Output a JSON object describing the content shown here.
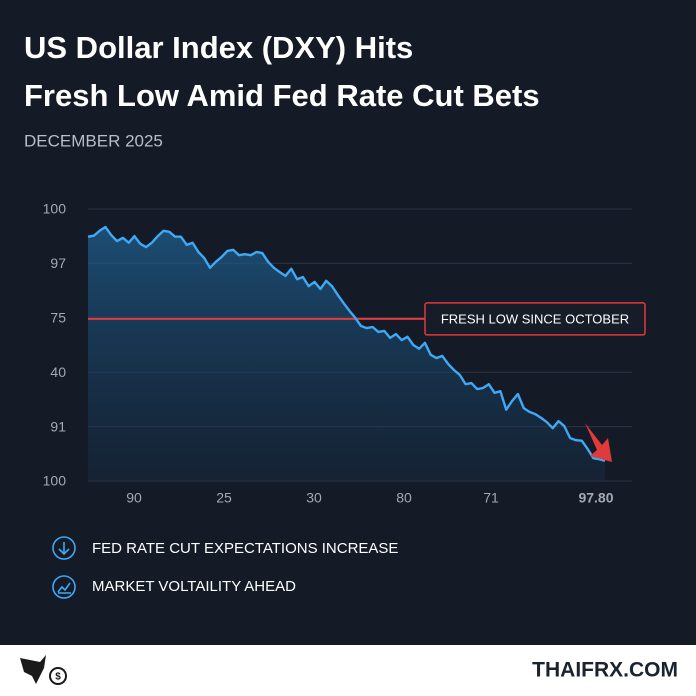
{
  "chart_data": {
    "type": "line",
    "title": [
      "US Dollar Index (DXY) Hits",
      "Fresh Low Amid Fed Rate Cut Bets"
    ],
    "subtitle": "DECEMBER 2025",
    "ylim": [
      0,
      5
    ],
    "yticks": [
      {
        "value": 5,
        "label": "100"
      },
      {
        "value": 4,
        "label": "97"
      },
      {
        "value": 3,
        "label": "75"
      },
      {
        "value": 2,
        "label": "40"
      },
      {
        "value": 1,
        "label": "91"
      },
      {
        "value": 0,
        "label": "100"
      }
    ],
    "xtick_labels": [
      "90",
      "25",
      "30",
      "80",
      "71",
      "97.80"
    ],
    "grid": true,
    "color": "#3fa9f5",
    "values": [
      4.49,
      4.51,
      4.6,
      4.67,
      4.52,
      4.41,
      4.47,
      4.38,
      4.5,
      4.36,
      4.3,
      4.38,
      4.5,
      4.6,
      4.58,
      4.49,
      4.49,
      4.34,
      4.38,
      4.21,
      4.1,
      3.92,
      4.03,
      4.12,
      4.23,
      4.25,
      4.15,
      4.17,
      4.15,
      4.21,
      4.19,
      4.03,
      3.92,
      3.84,
      3.77,
      3.9,
      3.71,
      3.75,
      3.58,
      3.66,
      3.53,
      3.68,
      3.58,
      3.42,
      3.27,
      3.13,
      3.0,
      2.85,
      2.81,
      2.83,
      2.74,
      2.76,
      2.63,
      2.7,
      2.59,
      2.65,
      2.5,
      2.43,
      2.54,
      2.32,
      2.26,
      2.3,
      2.15,
      2.04,
      1.95,
      1.78,
      1.8,
      1.69,
      1.71,
      1.78,
      1.62,
      1.65,
      1.31,
      1.47,
      1.6,
      1.34,
      1.27,
      1.23,
      1.16,
      1.08,
      0.97,
      1.1,
      1.01,
      0.79,
      0.75,
      0.74,
      0.59,
      0.42,
      0.4,
      0.37
    ],
    "reference_line": {
      "value": 2.98,
      "label": "FRESH LOW SINCE OCTOBER",
      "color": "#e03a3a"
    }
  },
  "bullets": [
    "FED RATE CUT EXPECTATIONS INCREASE",
    "MARKET VOLTAILITY AHEAD"
  ],
  "footer": {
    "brand": "THAIFRX.COM"
  }
}
